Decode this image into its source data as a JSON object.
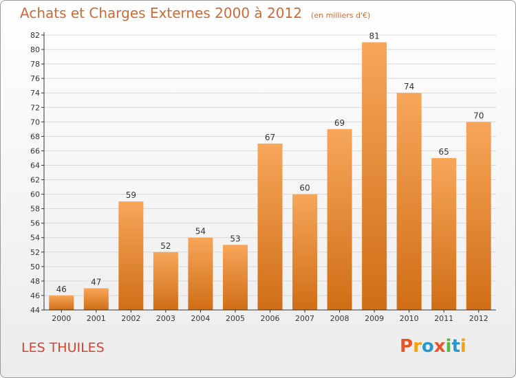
{
  "header": {
    "title": "Achats et Charges Externes 2000 à 2012",
    "subtitle": "(en milliers d'€)"
  },
  "footer": {
    "commune": "LES THUILES",
    "logo_letters": [
      "P",
      "r",
      "o",
      "x",
      "i",
      "t",
      "i"
    ],
    "logo_colors": [
      "#e8552a",
      "#f2a20c",
      "#2a98cf",
      "#e8552a",
      "#56b947",
      "#2a98cf",
      "#f2a20c"
    ]
  },
  "colors": {
    "bar_top": "#f7a65a",
    "bar_bottom": "#d06e16",
    "grid": "#d8d8d8",
    "axis": "#333333",
    "title": "#cc6a35",
    "commune": "#d0462e"
  },
  "chart_data": {
    "type": "bar",
    "title": "Achats et Charges Externes 2000 à 2012",
    "subtitle": "(en milliers d'€)",
    "categories": [
      "2000",
      "2001",
      "2002",
      "2003",
      "2004",
      "2005",
      "2006",
      "2007",
      "2008",
      "2009",
      "2010",
      "2011",
      "2012"
    ],
    "values": [
      46,
      47,
      59,
      52,
      54,
      53,
      67,
      60,
      69,
      81,
      74,
      65,
      70
    ],
    "ylim": [
      44,
      82
    ],
    "yticks": [
      44,
      46,
      48,
      50,
      52,
      54,
      56,
      58,
      60,
      62,
      64,
      66,
      68,
      70,
      72,
      74,
      76,
      78,
      80,
      82
    ],
    "grid": true
  }
}
